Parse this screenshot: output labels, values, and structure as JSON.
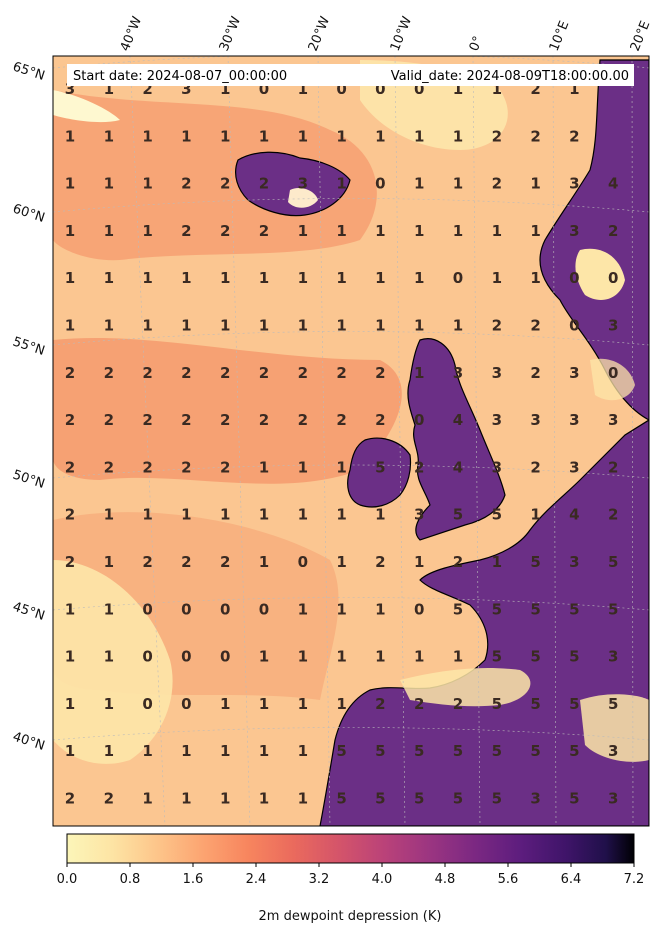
{
  "header": {
    "start_label": "Start date: 2024-08-07_00:00:00",
    "valid_label": "Valid_date: 2024-08-09T18:00:00.00"
  },
  "lon_labels": [
    "40°W",
    "30°W",
    "20°W",
    "10°W",
    "0°",
    "10°E",
    "20°E"
  ],
  "lat_labels": [
    "65°N",
    "60°N",
    "55°N",
    "50°N",
    "45°N",
    "40°N"
  ],
  "grid_values": [
    [
      "3",
      "1",
      "2",
      "3",
      "1",
      "0",
      "1",
      "0",
      "0",
      "0",
      "1",
      "1",
      "2",
      "1",
      ""
    ],
    [
      "1",
      "1",
      "1",
      "1",
      "1",
      "1",
      "1",
      "1",
      "1",
      "1",
      "1",
      "2",
      "2",
      "2",
      ""
    ],
    [
      "1",
      "1",
      "1",
      "2",
      "2",
      "2",
      "3",
      "1",
      "0",
      "1",
      "1",
      "2",
      "1",
      "3",
      "4"
    ],
    [
      "1",
      "1",
      "1",
      "2",
      "2",
      "2",
      "1",
      "1",
      "1",
      "1",
      "1",
      "1",
      "1",
      "3",
      "2"
    ],
    [
      "1",
      "1",
      "1",
      "1",
      "1",
      "1",
      "1",
      "1",
      "1",
      "1",
      "0",
      "1",
      "1",
      "0",
      "0"
    ],
    [
      "1",
      "1",
      "1",
      "1",
      "1",
      "1",
      "1",
      "1",
      "1",
      "1",
      "1",
      "2",
      "2",
      "0",
      "3"
    ],
    [
      "2",
      "2",
      "2",
      "2",
      "2",
      "2",
      "2",
      "2",
      "2",
      "1",
      "3",
      "3",
      "2",
      "3",
      "0"
    ],
    [
      "2",
      "2",
      "2",
      "2",
      "2",
      "2",
      "2",
      "2",
      "2",
      "0",
      "4",
      "3",
      "3",
      "3",
      "3"
    ],
    [
      "2",
      "2",
      "2",
      "2",
      "2",
      "1",
      "1",
      "1",
      "5",
      "2",
      "4",
      "3",
      "2",
      "3",
      "2"
    ],
    [
      "2",
      "1",
      "1",
      "1",
      "1",
      "1",
      "1",
      "1",
      "1",
      "3",
      "5",
      "5",
      "1",
      "4",
      "2"
    ],
    [
      "2",
      "1",
      "2",
      "2",
      "2",
      "1",
      "0",
      "1",
      "2",
      "1",
      "2",
      "1",
      "5",
      "3",
      "5"
    ],
    [
      "1",
      "1",
      "0",
      "0",
      "0",
      "0",
      "1",
      "1",
      "1",
      "0",
      "5",
      "5",
      "5",
      "5",
      "5"
    ],
    [
      "1",
      "1",
      "0",
      "0",
      "0",
      "1",
      "1",
      "1",
      "1",
      "1",
      "1",
      "5",
      "5",
      "5",
      "3"
    ],
    [
      "1",
      "1",
      "0",
      "0",
      "1",
      "1",
      "1",
      "1",
      "2",
      "2",
      "2",
      "5",
      "5",
      "5",
      "5"
    ],
    [
      "1",
      "1",
      "1",
      "1",
      "1",
      "1",
      "1",
      "5",
      "5",
      "5",
      "5",
      "5",
      "5",
      "5",
      "3"
    ],
    [
      "2",
      "2",
      "1",
      "1",
      "1",
      "1",
      "1",
      "5",
      "5",
      "5",
      "5",
      "5",
      "3",
      "5",
      "3"
    ]
  ],
  "colorbar": {
    "title": "2m dewpoint depression (K)",
    "ticks": [
      "0.0",
      "0.8",
      "1.6",
      "2.4",
      "3.2",
      "4.0",
      "4.8",
      "5.6",
      "6.4",
      "7.2"
    ],
    "min": 0,
    "max": 7.2,
    "colors": [
      "#fcf6b9",
      "#fde4a4",
      "#fdc58a",
      "#fca471",
      "#f7855e",
      "#ea6a5d",
      "#d4546a",
      "#ba4279",
      "#9b3581",
      "#7b2882",
      "#5d1d7e",
      "#3f1469",
      "#20104a",
      "#000004"
    ]
  },
  "colors": {
    "land": "#6b2f86",
    "ocean_base": "#fbc691",
    "coastline": "#000000"
  }
}
